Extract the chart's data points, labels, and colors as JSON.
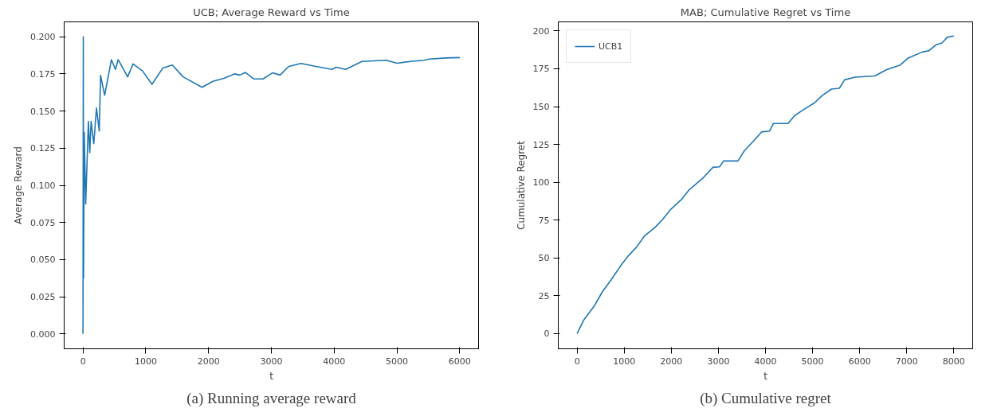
{
  "chart_data": [
    {
      "type": "line",
      "title": "UCB; Average Reward vs Time",
      "xlabel": "t",
      "ylabel": "Average Reward",
      "annotations": [
        "(a) Running average reward"
      ],
      "grid": false,
      "legend": false,
      "xlim": [
        -300,
        6300
      ],
      "ylim": [
        -0.01,
        0.21
      ],
      "xticks": [
        0,
        1000,
        2000,
        3000,
        4000,
        5000,
        6000
      ],
      "yticks": [
        {
          "value": 0,
          "label": "0.000"
        },
        {
          "value": 0.025,
          "label": "0.025"
        },
        {
          "value": 0.05,
          "label": "0.050"
        },
        {
          "value": 0.075,
          "label": "0.075"
        },
        {
          "value": 0.1,
          "label": "0.100"
        },
        {
          "value": 0.125,
          "label": "0.125"
        },
        {
          "value": 0.15,
          "label": "0.150"
        },
        {
          "value": 0.175,
          "label": "0.175"
        },
        {
          "value": 0.2,
          "label": "0.200"
        }
      ],
      "series": [
        {
          "color": "#1f77b4",
          "x": [
            0,
            5,
            9,
            20,
            43,
            86,
            108,
            129,
            172,
            215,
            259,
            280,
            345,
            453,
            517,
            560,
            711,
            797,
            948,
            1099,
            1272,
            1422,
            1595,
            1897,
            2069,
            2241,
            2414,
            2500,
            2587,
            2717,
            2867,
            3018,
            3139,
            3277,
            3471,
            3708,
            3967,
            4031,
            4183,
            4441,
            4829,
            5001,
            5218,
            5433,
            5519,
            5778,
            6000
          ],
          "values": [
            0,
            0.2,
            0.0375,
            0.1356,
            0.0875,
            0.143,
            0.122,
            0.143,
            0.128,
            0.152,
            0.1365,
            0.174,
            0.1606,
            0.1846,
            0.178,
            0.1846,
            0.173,
            0.1817,
            0.177,
            0.168,
            0.179,
            0.181,
            0.173,
            0.166,
            0.17,
            0.172,
            0.175,
            0.1742,
            0.176,
            0.1716,
            0.1716,
            0.1757,
            0.1742,
            0.18,
            0.182,
            0.18,
            0.178,
            0.1795,
            0.178,
            0.1834,
            0.1842,
            0.1822,
            0.1834,
            0.1842,
            0.185,
            0.1857,
            0.186
          ]
        }
      ]
    },
    {
      "type": "line",
      "title": "MAB; Cumulative Regret vs Time",
      "xlabel": "t",
      "ylabel": "Cumulative Regret",
      "annotations": [
        "(b) Cumulative regret"
      ],
      "grid": false,
      "legend": "top left",
      "xlim": [
        -400,
        8400
      ],
      "ylim": [
        -10,
        206
      ],
      "xticks": [
        0,
        1000,
        2000,
        3000,
        4000,
        5000,
        6000,
        7000,
        8000
      ],
      "yticks": [
        0,
        25,
        50,
        75,
        100,
        125,
        150,
        175,
        200
      ],
      "series": [
        {
          "name": "UCB1",
          "color": "#1f77b4",
          "x": [
            0,
            145,
            369,
            537,
            732,
            928,
            1096,
            1263,
            1431,
            1655,
            1822,
            1990,
            2214,
            2381,
            2661,
            2884,
            3024,
            3108,
            3416,
            3555,
            3751,
            3919,
            4086,
            4170,
            4478,
            4617,
            4813,
            5037,
            5204,
            5400,
            5568,
            5680,
            5903,
            6322,
            6574,
            6853,
            7021,
            7329,
            7469,
            7608,
            7748,
            7860,
            8000
          ],
          "values": [
            0,
            9.2,
            18.5,
            27.7,
            36,
            45,
            51.7,
            57.2,
            64.6,
            70.2,
            75.7,
            82.2,
            88.6,
            95.1,
            102.5,
            109.9,
            110.2,
            114.1,
            114.1,
            121,
            127.4,
            133.3,
            133.9,
            138.9,
            138.9,
            144,
            148.1,
            152.4,
            157.3,
            161.6,
            162.1,
            167.7,
            169.5,
            170.3,
            174.5,
            177.3,
            181.9,
            186.1,
            186.9,
            190.6,
            192.1,
            195.8,
            196.7
          ]
        }
      ]
    }
  ]
}
